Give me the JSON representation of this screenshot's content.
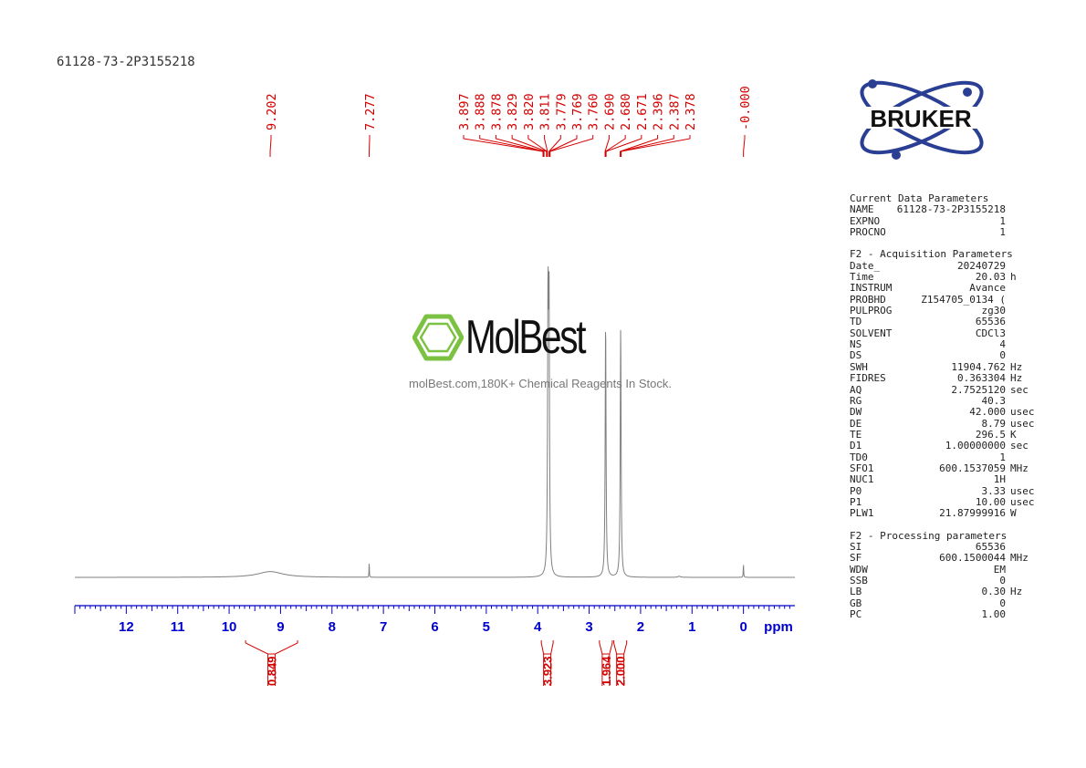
{
  "sample_id": "61128-73-2P3155218",
  "logo": {
    "brand": "BRUKER"
  },
  "watermark": {
    "name": "MolBest",
    "tagline": "molBest.com,180K+ Chemical Reagents In Stock."
  },
  "colors": {
    "spectrum": "#7f7f7f",
    "axis": "#0000cc",
    "annotation": "#d40000"
  },
  "chart_data": {
    "type": "line",
    "xlabel": "ppm",
    "xlim": [
      13.0,
      -1.0
    ],
    "x_reversed": true,
    "x_ticks": [
      12,
      11,
      10,
      9,
      8,
      7,
      6,
      5,
      4,
      3,
      2,
      1,
      0
    ],
    "peak_labels": [
      "9.202",
      "7.277",
      "3.897",
      "3.888",
      "3.878",
      "3.829",
      "3.820",
      "3.811",
      "3.779",
      "3.769",
      "3.760",
      "2.690",
      "2.680",
      "2.671",
      "2.396",
      "2.387",
      "2.378",
      "-0.000"
    ],
    "integrals": [
      {
        "label": "0.849",
        "from": 9.68,
        "to": 8.67
      },
      {
        "label": "3.923",
        "from": 3.93,
        "to": 3.7
      },
      {
        "label": "1.964",
        "from": 2.8,
        "to": 2.55
      },
      {
        "label": "2.000",
        "from": 2.52,
        "to": 2.27
      }
    ],
    "peaks": [
      {
        "ppm": 9.2,
        "height": 0.022,
        "width": 0.3
      },
      {
        "ppm": 7.277,
        "height": 0.06,
        "width": 0.004
      },
      {
        "ppm": 3.8,
        "height": 1.0,
        "width": 0.01
      },
      {
        "ppm": 3.78,
        "height": 1.0,
        "width": 0.01
      },
      {
        "ppm": 2.68,
        "height": 0.97,
        "width": 0.01
      },
      {
        "ppm": 2.387,
        "height": 0.95,
        "width": 0.01
      },
      {
        "ppm": 1.25,
        "height": 0.004,
        "width": 0.03
      },
      {
        "ppm": 0.0,
        "height": 0.05,
        "width": 0.005
      }
    ]
  },
  "parameters": {
    "current": {
      "title": "Current Data Parameters",
      "rows": [
        {
          "k": "NAME",
          "v": "61128-73-2P3155218",
          "u": ""
        },
        {
          "k": "EXPNO",
          "v": "1",
          "u": ""
        },
        {
          "k": "PROCNO",
          "v": "1",
          "u": ""
        }
      ]
    },
    "acquisition": {
      "title": "F2 - Acquisition Parameters",
      "rows": [
        {
          "k": "Date_",
          "v": "20240729",
          "u": ""
        },
        {
          "k": "Time",
          "v": "20.03",
          "u": "h"
        },
        {
          "k": "INSTRUM",
          "v": "Avance",
          "u": ""
        },
        {
          "k": "PROBHD",
          "v": "Z154705_0134 (",
          "u": ""
        },
        {
          "k": "PULPROG",
          "v": "zg30",
          "u": ""
        },
        {
          "k": "TD",
          "v": "65536",
          "u": ""
        },
        {
          "k": "SOLVENT",
          "v": "CDCl3",
          "u": ""
        },
        {
          "k": "NS",
          "v": "4",
          "u": ""
        },
        {
          "k": "DS",
          "v": "0",
          "u": ""
        },
        {
          "k": "SWH",
          "v": "11904.762",
          "u": "Hz"
        },
        {
          "k": "FIDRES",
          "v": "0.363304",
          "u": "Hz"
        },
        {
          "k": "AQ",
          "v": "2.7525120",
          "u": "sec"
        },
        {
          "k": "RG",
          "v": "40.3",
          "u": ""
        },
        {
          "k": "DW",
          "v": "42.000",
          "u": "usec"
        },
        {
          "k": "DE",
          "v": "8.79",
          "u": "usec"
        },
        {
          "k": "TE",
          "v": "296.5",
          "u": "K"
        },
        {
          "k": "D1",
          "v": "1.00000000",
          "u": "sec"
        },
        {
          "k": "TD0",
          "v": "1",
          "u": ""
        },
        {
          "k": "SFO1",
          "v": "600.1537059",
          "u": "MHz"
        },
        {
          "k": "NUC1",
          "v": "1H",
          "u": ""
        },
        {
          "k": "P0",
          "v": "3.33",
          "u": "usec"
        },
        {
          "k": "P1",
          "v": "10.00",
          "u": "usec"
        },
        {
          "k": "PLW1",
          "v": "21.87999916",
          "u": "W"
        }
      ]
    },
    "processing": {
      "title": "F2 - Processing parameters",
      "rows": [
        {
          "k": "SI",
          "v": "65536",
          "u": ""
        },
        {
          "k": "SF",
          "v": "600.1500044",
          "u": "MHz"
        },
        {
          "k": "WDW",
          "v": "EM",
          "u": ""
        },
        {
          "k": "SSB",
          "v": "0",
          "u": ""
        },
        {
          "k": "LB",
          "v": "0.30",
          "u": "Hz"
        },
        {
          "k": "GB",
          "v": "0",
          "u": ""
        },
        {
          "k": "PC",
          "v": "1.00",
          "u": ""
        }
      ]
    }
  }
}
